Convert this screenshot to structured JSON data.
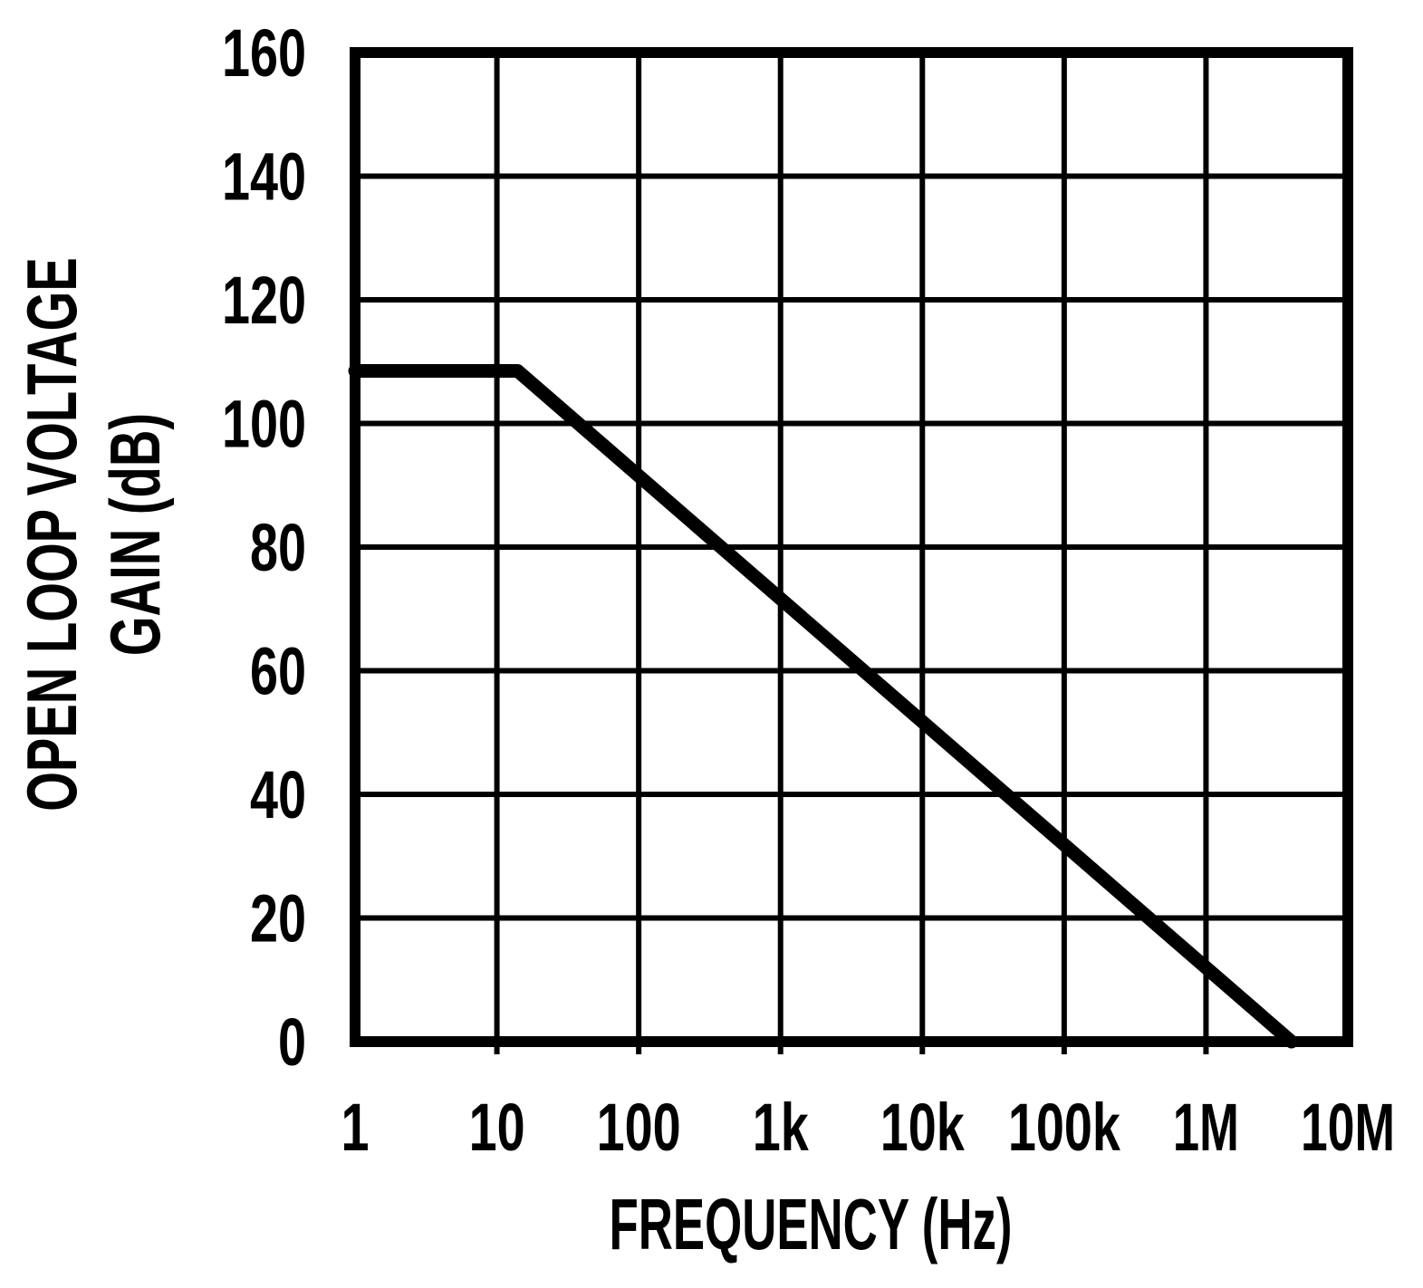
{
  "figure": {
    "background": "#ffffff",
    "ink": "#000000"
  },
  "chart_data": {
    "type": "line",
    "title": "",
    "xlabel": "FREQUENCY (Hz)",
    "ylabel": [
      "OPEN LOOP VOLTAGE",
      "GAIN (dB)"
    ],
    "x_scale": "log",
    "grid": true,
    "legend": "none",
    "x_range_hz": [
      1,
      10000000
    ],
    "y_range_db": [
      0,
      160
    ],
    "y_tick_step_db": 20,
    "x_ticks": [
      {
        "label": "1",
        "hz": 1
      },
      {
        "label": "10",
        "hz": 10
      },
      {
        "label": "100",
        "hz": 100
      },
      {
        "label": "1k",
        "hz": 1000
      },
      {
        "label": "10k",
        "hz": 10000
      },
      {
        "label": "100k",
        "hz": 100000
      },
      {
        "label": "1M",
        "hz": 1000000
      },
      {
        "label": "10M",
        "hz": 10000000
      }
    ],
    "y_ticks": [
      {
        "label": "0",
        "db": 0
      },
      {
        "label": "20",
        "db": 20
      },
      {
        "label": "40",
        "db": 40
      },
      {
        "label": "60",
        "db": 60
      },
      {
        "label": "80",
        "db": 80
      },
      {
        "label": "100",
        "db": 100
      },
      {
        "label": "120",
        "db": 120
      },
      {
        "label": "140",
        "db": 140
      },
      {
        "label": "160",
        "db": 160
      }
    ],
    "series": [
      {
        "name": "open-loop-voltage-gain",
        "points_hz_db": [
          [
            1,
            108.5
          ],
          [
            14,
            108.5
          ],
          [
            4000000,
            0
          ]
        ],
        "flat_gain_db": 108.5,
        "corner_frequency_hz": 14,
        "rolloff_db_per_decade": -20,
        "unity_gain_frequency_hz": 4000000,
        "readings_db_at_decades": {
          "1": 108.5,
          "10": 108.5,
          "100": 92.5,
          "1k": 72.5,
          "10k": 52.5,
          "100k": 32.5,
          "1M": 12.5
        }
      }
    ]
  }
}
